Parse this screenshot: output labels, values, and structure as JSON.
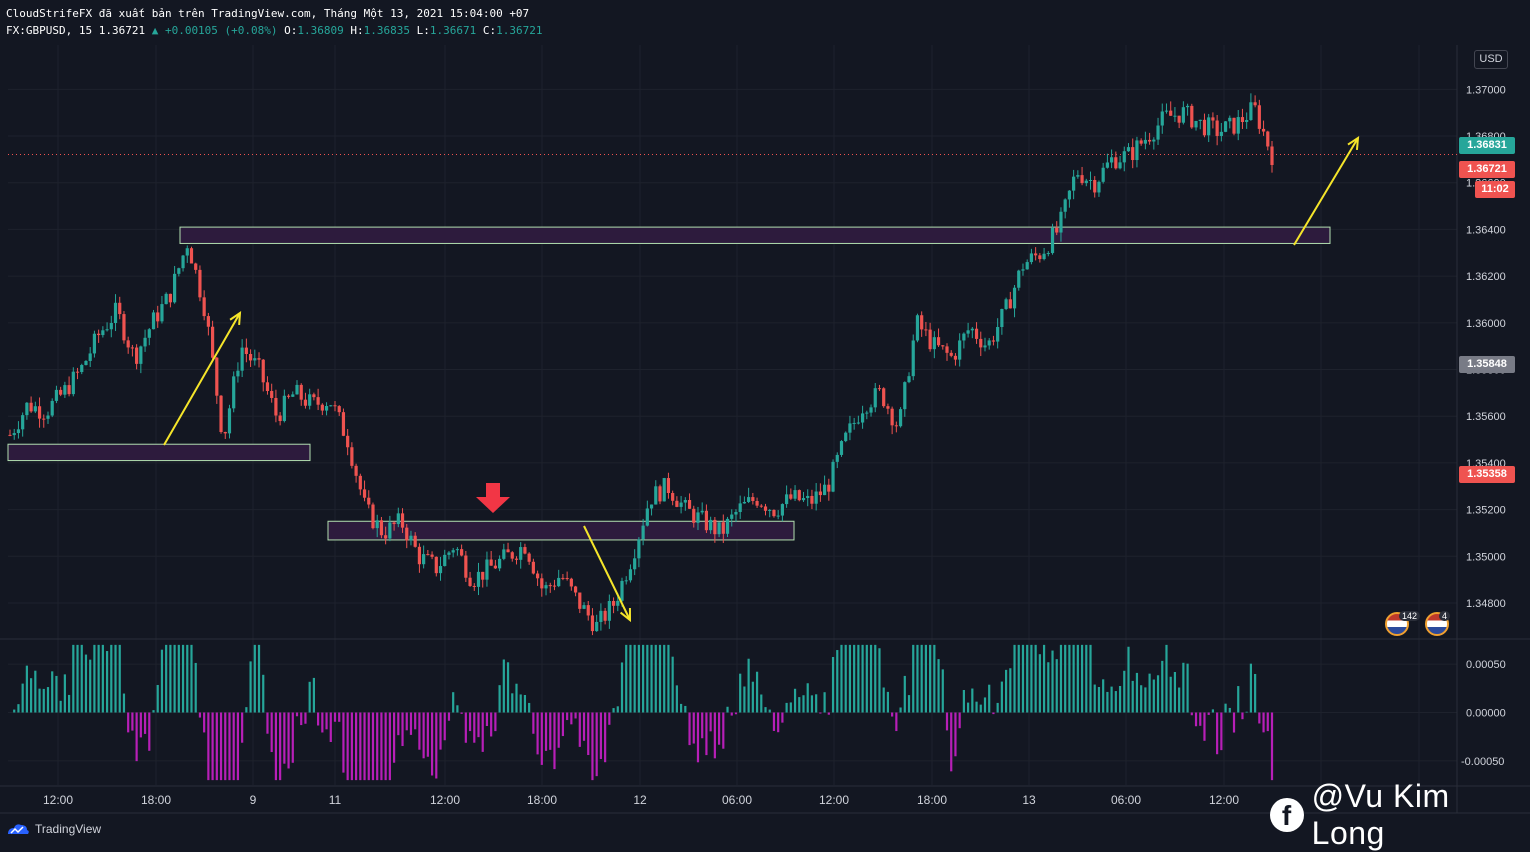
{
  "header": {
    "line1": "CloudStrifeFX đã xuất bản trên TradingView.com, Tháng Một 13, 2021 15:04:00 +07",
    "symbol": "FX:GBPUSD, 15",
    "last": "1.36721",
    "change": "▲ +0.00105 (+0.08%)",
    "o_label": "O:",
    "o_val": "1.36809",
    "h_label": "H:",
    "h_val": "1.36835",
    "l_label": "L:",
    "l_val": "1.36671",
    "c_label": "C:",
    "c_val": "1.36721"
  },
  "currency": "USD",
  "price_tags": {
    "high_tag": "1.36831",
    "last_tag": "1.36721",
    "countdown": "11:02",
    "grey_tag": "1.35848",
    "low_tag": "1.35358"
  },
  "branding": {
    "logo_text": "TradingView",
    "watermark": "@Vu Kim Long",
    "fb_letter": "f"
  },
  "events": [
    {
      "count": "142"
    },
    {
      "count": "4"
    }
  ],
  "colors": {
    "bg": "#131722",
    "up": "#26a69a",
    "down": "#ef5350",
    "zone": "#2d1b3d",
    "arrow": "#f5e52a",
    "hist_pos": "#26a69a",
    "hist_neg": "#b71fb7"
  },
  "chart_data": {
    "type": "candlestick",
    "symbol": "GBPUSD",
    "timeframe": "15",
    "y_axis": {
      "ticks": [
        1.348,
        1.35,
        1.352,
        1.354,
        1.356,
        1.358,
        1.36,
        1.362,
        1.364,
        1.366,
        1.368,
        1.37
      ],
      "range": [
        1.3465,
        1.3719
      ]
    },
    "x_axis": {
      "ticks": [
        "12:00",
        "18:00",
        "9",
        "11",
        "12:00",
        "18:00",
        "12",
        "06:00",
        "12:00",
        "18:00",
        "13",
        "06:00",
        "12:00"
      ]
    },
    "price_path": [
      1.3552,
      1.3565,
      1.3562,
      1.357,
      1.358,
      1.3595,
      1.3605,
      1.3585,
      1.36,
      1.3612,
      1.3635,
      1.3605,
      1.355,
      1.359,
      1.358,
      1.356,
      1.357,
      1.3565,
      1.3567,
      1.355,
      1.352,
      1.351,
      1.3515,
      1.35,
      1.3495,
      1.3505,
      1.349,
      1.3495,
      1.35,
      1.3505,
      1.3485,
      1.3492,
      1.348,
      1.347,
      1.348,
      1.35,
      1.3525,
      1.353,
      1.352,
      1.3515,
      1.351,
      1.352,
      1.3525,
      1.352,
      1.3525,
      1.3523,
      1.353,
      1.355,
      1.3565,
      1.357,
      1.3555,
      1.36,
      1.359,
      1.3585,
      1.3598,
      1.359,
      1.3605,
      1.3625,
      1.363,
      1.364,
      1.3665,
      1.366,
      1.367,
      1.3672,
      1.368,
      1.3688,
      1.369,
      1.3685,
      1.3682,
      1.3685,
      1.3692,
      1.3672
    ],
    "levels": {
      "high": 1.36831,
      "last": 1.36721,
      "grey": 1.35848,
      "low": 1.35358
    },
    "zones": [
      {
        "from": 1.3634,
        "to": 1.3641
      },
      {
        "from": 1.3507,
        "to": 1.3515
      },
      {
        "from": 1.3541,
        "to": 1.3548
      }
    ],
    "oscillator": {
      "ticks": [
        0.0005,
        0.0,
        -0.0005
      ],
      "range": [
        -0.00075,
        0.00075
      ]
    }
  }
}
